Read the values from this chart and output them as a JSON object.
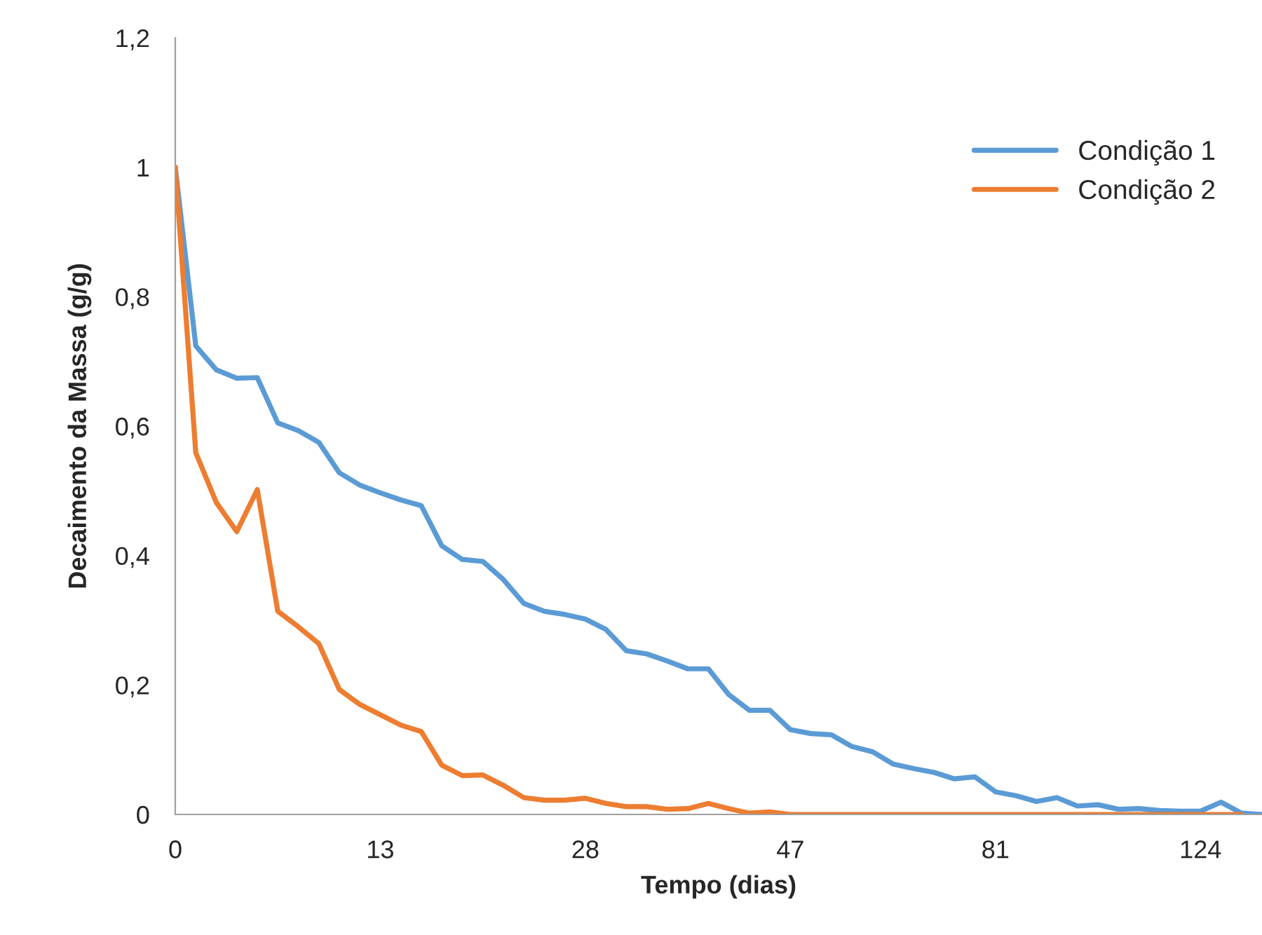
{
  "chart_data": {
    "type": "line",
    "xlabel": "Tempo (dias)",
    "ylabel": "Decaimento da Massa (g/g)",
    "categories": [
      "0",
      null,
      null,
      null,
      null,
      null,
      null,
      null,
      null,
      null,
      "13",
      null,
      null,
      null,
      null,
      null,
      null,
      null,
      null,
      null,
      "28",
      null,
      null,
      null,
      null,
      null,
      null,
      null,
      null,
      null,
      "47",
      null,
      null,
      null,
      null,
      null,
      null,
      null,
      null,
      null,
      "81",
      null,
      null,
      null,
      null,
      null,
      null,
      null,
      null,
      null,
      "124",
      null,
      null,
      null
    ],
    "series": [
      {
        "name": "Condição 1",
        "color": "#5b9bd5",
        "values": [
          1.0,
          0.724,
          0.687,
          0.674,
          0.675,
          0.605,
          0.593,
          0.575,
          0.528,
          0.509,
          0.497,
          0.486,
          0.477,
          0.415,
          0.394,
          0.391,
          0.363,
          0.326,
          0.314,
          0.309,
          0.302,
          0.286,
          0.253,
          0.248,
          0.237,
          0.225,
          0.225,
          0.185,
          0.161,
          0.161,
          0.131,
          0.125,
          0.123,
          0.105,
          0.097,
          0.078,
          0.071,
          0.065,
          0.055,
          0.058,
          0.035,
          0.029,
          0.02,
          0.026,
          0.013,
          0.015,
          0.008,
          0.009,
          0.006,
          0.005,
          0.005,
          0.019,
          0.002,
          0.0
        ]
      },
      {
        "name": "Condição 2",
        "color": "#ed7d31",
        "values": [
          1.0,
          0.559,
          0.482,
          0.437,
          0.502,
          0.314,
          0.29,
          0.264,
          0.193,
          0.17,
          0.154,
          0.138,
          0.128,
          0.076,
          0.06,
          0.061,
          0.045,
          0.026,
          0.022,
          0.022,
          0.025,
          0.017,
          0.012,
          0.012,
          0.008,
          0.009,
          0.017,
          0.009,
          0.002,
          0.004,
          0.0,
          0.0,
          0.0,
          0.0,
          0.0,
          0.0,
          0.0,
          0.0,
          0.0,
          0.0,
          0.0,
          0.0,
          0.0,
          0.0,
          0.0,
          0.0,
          0.0,
          0.0,
          0.0,
          0.0,
          0.0,
          0.0,
          0.0,
          null
        ]
      }
    ],
    "ylim": [
      0,
      1.2
    ],
    "yticks": [
      {
        "value": 0,
        "label": "0"
      },
      {
        "value": 0.2,
        "label": "0,2"
      },
      {
        "value": 0.4,
        "label": "0,4"
      },
      {
        "value": 0.6,
        "label": "0,6"
      },
      {
        "value": 0.8,
        "label": "0,8"
      },
      {
        "value": 1,
        "label": "1"
      },
      {
        "value": 1.2,
        "label": "1,2"
      }
    ],
    "grid": false,
    "legend": "top right",
    "marker": "none",
    "line_style": "solid"
  }
}
